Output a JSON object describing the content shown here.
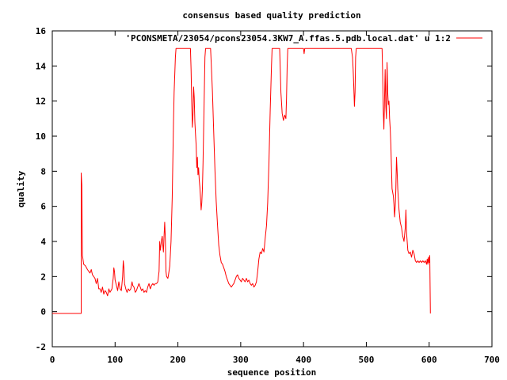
{
  "chart_data": {
    "type": "line",
    "title": "consensus based quality prediction",
    "xlabel": "sequence position",
    "ylabel": "quality",
    "xlim": [
      0,
      700
    ],
    "ylim": [
      -2,
      16
    ],
    "xticks": [
      0,
      100,
      200,
      300,
      400,
      500,
      600,
      700
    ],
    "yticks": [
      -2,
      0,
      2,
      4,
      6,
      8,
      10,
      12,
      14,
      16
    ],
    "grid": false,
    "legend_position": "top-right",
    "series": [
      {
        "name": "'PCONSMETA/23054/pcons23054.3KW7_A.ffas.5.pdb.local.dat' u 1:2",
        "color": "#ff0000",
        "points": [
          [
            0,
            -0.1
          ],
          [
            46,
            -0.1
          ],
          [
            46,
            7.9
          ],
          [
            47,
            7.2
          ],
          [
            48,
            3.2
          ],
          [
            50,
            2.7
          ],
          [
            53,
            2.6
          ],
          [
            56,
            2.4
          ],
          [
            60,
            2.2
          ],
          [
            62,
            2.4
          ],
          [
            64,
            2.1
          ],
          [
            66,
            2.0
          ],
          [
            68,
            1.9
          ],
          [
            70,
            1.6
          ],
          [
            72,
            1.9
          ],
          [
            74,
            1.3
          ],
          [
            76,
            1.3
          ],
          [
            78,
            1.1
          ],
          [
            80,
            1.4
          ],
          [
            82,
            1.0
          ],
          [
            84,
            1.2
          ],
          [
            86,
            1.1
          ],
          [
            88,
            0.9
          ],
          [
            90,
            1.3
          ],
          [
            92,
            1.1
          ],
          [
            95,
            1.3
          ],
          [
            97,
            1.9
          ],
          [
            98,
            2.5
          ],
          [
            99,
            2.3
          ],
          [
            100,
            1.8
          ],
          [
            102,
            1.5
          ],
          [
            104,
            1.2
          ],
          [
            106,
            1.7
          ],
          [
            108,
            1.3
          ],
          [
            110,
            1.2
          ],
          [
            112,
            2.0
          ],
          [
            113,
            2.9
          ],
          [
            114,
            2.5
          ],
          [
            115,
            1.6
          ],
          [
            117,
            1.3
          ],
          [
            119,
            1.1
          ],
          [
            121,
            1.3
          ],
          [
            123,
            1.2
          ],
          [
            125,
            1.3
          ],
          [
            127,
            1.7
          ],
          [
            128,
            1.5
          ],
          [
            130,
            1.4
          ],
          [
            132,
            1.1
          ],
          [
            134,
            1.2
          ],
          [
            136,
            1.4
          ],
          [
            138,
            1.6
          ],
          [
            140,
            1.4
          ],
          [
            142,
            1.2
          ],
          [
            144,
            1.3
          ],
          [
            146,
            1.1
          ],
          [
            148,
            1.2
          ],
          [
            150,
            1.1
          ],
          [
            152,
            1.4
          ],
          [
            154,
            1.6
          ],
          [
            156,
            1.3
          ],
          [
            158,
            1.5
          ],
          [
            160,
            1.6
          ],
          [
            162,
            1.5
          ],
          [
            164,
            1.6
          ],
          [
            166,
            1.6
          ],
          [
            168,
            1.7
          ],
          [
            170,
            2.3
          ],
          [
            171,
            4.0
          ],
          [
            172,
            3.5
          ],
          [
            174,
            4.1
          ],
          [
            175,
            4.3
          ],
          [
            176,
            3.8
          ],
          [
            177,
            3.4
          ],
          [
            178,
            4.3
          ],
          [
            179,
            5.1
          ],
          [
            180,
            4.2
          ],
          [
            181,
            2.3
          ],
          [
            182,
            2.0
          ],
          [
            184,
            1.9
          ],
          [
            185,
            2.1
          ],
          [
            187,
            2.6
          ],
          [
            189,
            4.0
          ],
          [
            191,
            6.5
          ],
          [
            193,
            10.8
          ],
          [
            194,
            12.5
          ],
          [
            196,
            14.5
          ],
          [
            197,
            15.0
          ],
          [
            220,
            15.0
          ],
          [
            221,
            13.8
          ],
          [
            222,
            12.0
          ],
          [
            223,
            10.5
          ],
          [
            224,
            11.2
          ],
          [
            225,
            12.8
          ],
          [
            226,
            12.2
          ],
          [
            227,
            10.8
          ],
          [
            228,
            10.1
          ],
          [
            229,
            9.5
          ],
          [
            230,
            8.2
          ],
          [
            231,
            8.8
          ],
          [
            232,
            7.8
          ],
          [
            233,
            8.2
          ],
          [
            234,
            7.5
          ],
          [
            235,
            7.1
          ],
          [
            236,
            6.5
          ],
          [
            237,
            5.8
          ],
          [
            238,
            6.2
          ],
          [
            239,
            7.0
          ],
          [
            240,
            8.5
          ],
          [
            241,
            10.5
          ],
          [
            242,
            12.5
          ],
          [
            243,
            14.5
          ],
          [
            244,
            15.0
          ],
          [
            252,
            15.0
          ],
          [
            253,
            14.2
          ],
          [
            255,
            12.5
          ],
          [
            257,
            10.2
          ],
          [
            259,
            8.0
          ],
          [
            261,
            6.3
          ],
          [
            263,
            5.0
          ],
          [
            265,
            3.8
          ],
          [
            267,
            3.2
          ],
          [
            269,
            2.8
          ],
          [
            271,
            2.7
          ],
          [
            273,
            2.5
          ],
          [
            275,
            2.3
          ],
          [
            277,
            2.0
          ],
          [
            279,
            1.8
          ],
          [
            281,
            1.6
          ],
          [
            283,
            1.5
          ],
          [
            285,
            1.4
          ],
          [
            287,
            1.5
          ],
          [
            289,
            1.6
          ],
          [
            291,
            1.8
          ],
          [
            293,
            2.0
          ],
          [
            295,
            2.1
          ],
          [
            297,
            1.9
          ],
          [
            299,
            1.8
          ],
          [
            301,
            1.7
          ],
          [
            303,
            1.9
          ],
          [
            305,
            1.8
          ],
          [
            307,
            1.7
          ],
          [
            309,
            1.9
          ],
          [
            311,
            1.7
          ],
          [
            313,
            1.8
          ],
          [
            315,
            1.6
          ],
          [
            317,
            1.5
          ],
          [
            319,
            1.6
          ],
          [
            321,
            1.4
          ],
          [
            323,
            1.5
          ],
          [
            325,
            1.7
          ],
          [
            327,
            2.3
          ],
          [
            329,
            3.0
          ],
          [
            331,
            3.4
          ],
          [
            333,
            3.3
          ],
          [
            335,
            3.6
          ],
          [
            337,
            3.4
          ],
          [
            339,
            4.2
          ],
          [
            341,
            4.9
          ],
          [
            343,
            6.2
          ],
          [
            345,
            8.5
          ],
          [
            347,
            11.5
          ],
          [
            349,
            14.0
          ],
          [
            350,
            15.0
          ],
          [
            362,
            15.0
          ],
          [
            363,
            13.8
          ],
          [
            364,
            12.5
          ],
          [
            366,
            11.3
          ],
          [
            368,
            10.9
          ],
          [
            370,
            11.2
          ],
          [
            372,
            11.0
          ],
          [
            373,
            12.2
          ],
          [
            374,
            14.0
          ],
          [
            375,
            15.0
          ],
          [
            400,
            15.0
          ],
          [
            401,
            14.7
          ],
          [
            402,
            15.0
          ],
          [
            476,
            15.0
          ],
          [
            478,
            14.5
          ],
          [
            479,
            13.8
          ],
          [
            480,
            12.8
          ],
          [
            481,
            11.7
          ],
          [
            482,
            12.5
          ],
          [
            483,
            14.5
          ],
          [
            484,
            15.0
          ],
          [
            525,
            15.0
          ],
          [
            526,
            13.6
          ],
          [
            527,
            11.5
          ],
          [
            528,
            10.4
          ],
          [
            529,
            12.1
          ],
          [
            530,
            13.8
          ],
          [
            531,
            11.7
          ],
          [
            532,
            11.0
          ],
          [
            533,
            14.2
          ],
          [
            534,
            12.5
          ],
          [
            535,
            11.8
          ],
          [
            536,
            12.0
          ],
          [
            537,
            11.0
          ],
          [
            538,
            10.4
          ],
          [
            539,
            9.5
          ],
          [
            540,
            8.3
          ],
          [
            541,
            7.0
          ],
          [
            543,
            6.6
          ],
          [
            544,
            6.1
          ],
          [
            545,
            5.4
          ],
          [
            546,
            6.0
          ],
          [
            547,
            7.0
          ],
          [
            548,
            8.8
          ],
          [
            549,
            8.0
          ],
          [
            550,
            7.0
          ],
          [
            552,
            5.8
          ],
          [
            554,
            5.1
          ],
          [
            556,
            4.8
          ],
          [
            558,
            4.3
          ],
          [
            560,
            4.0
          ],
          [
            562,
            4.8
          ],
          [
            563,
            5.8
          ],
          [
            564,
            4.5
          ],
          [
            566,
            3.5
          ],
          [
            568,
            3.3
          ],
          [
            570,
            3.4
          ],
          [
            572,
            3.1
          ],
          [
            574,
            3.5
          ],
          [
            576,
            3.3
          ],
          [
            578,
            2.9
          ],
          [
            580,
            2.8
          ],
          [
            582,
            2.9
          ],
          [
            584,
            2.8
          ],
          [
            586,
            2.9
          ],
          [
            588,
            2.8
          ],
          [
            590,
            2.9
          ],
          [
            592,
            2.8
          ],
          [
            594,
            2.9
          ],
          [
            596,
            2.7
          ],
          [
            597,
            3.0
          ],
          [
            598,
            2.7
          ],
          [
            599,
            3.1
          ],
          [
            600,
            2.8
          ],
          [
            601,
            3.2
          ],
          [
            602,
            -0.1
          ]
        ]
      }
    ]
  }
}
